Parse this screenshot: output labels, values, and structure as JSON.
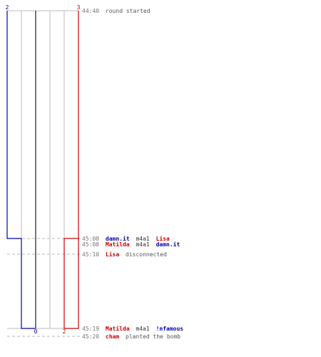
{
  "colors": {
    "ct": "#0000aa",
    "t": "#cc0000",
    "grid": "#bbbbbb",
    "center": "#777777",
    "dash": "#bbbbbb",
    "text": "#555555"
  },
  "scores": {
    "ct_start": "2",
    "t_start": "3",
    "ct_end": "0",
    "t_end": "2"
  },
  "events": [
    {
      "time": "44:40",
      "parts": [
        {
          "text": "round started",
          "role": "plain"
        }
      ]
    },
    {
      "time": "45:08",
      "parts": [
        {
          "text": "damn.it",
          "role": "ct"
        },
        {
          "text": "m4a1",
          "role": "weapon"
        },
        {
          "text": "Lisa",
          "role": "t"
        }
      ]
    },
    {
      "time": "45:08",
      "parts": [
        {
          "text": "Matilda",
          "role": "t"
        },
        {
          "text": "m4a1",
          "role": "weapon"
        },
        {
          "text": "damn.it",
          "role": "ct"
        }
      ]
    },
    {
      "time": "45:10",
      "parts": [
        {
          "text": "Lisa",
          "role": "t"
        },
        {
          "text": "disconnected",
          "role": "plain"
        }
      ]
    },
    {
      "time": "45:19",
      "parts": [
        {
          "text": "Matilda",
          "role": "t"
        },
        {
          "text": "m4a1",
          "role": "weapon"
        },
        {
          "text": "!nfamous",
          "role": "ct"
        }
      ]
    },
    {
      "time": "45:20",
      "parts": [
        {
          "text": "cham",
          "role": "t"
        },
        {
          "text": "planted the bomb",
          "role": "plain"
        }
      ]
    }
  ]
}
